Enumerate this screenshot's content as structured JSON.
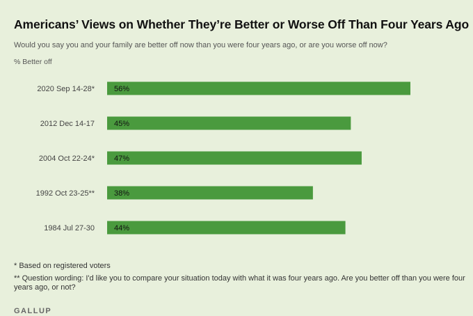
{
  "title": "Americans’ Views on Whether They’re Better or Worse Off Than Four Years Ago",
  "subtitle": "Would you say you and your family are better off now than you were four years ago, or are you worse off now?",
  "unit_label": "% Better off",
  "chart_data": {
    "type": "bar",
    "orientation": "horizontal",
    "categories": [
      "2020 Sep 14-28*",
      "2012 Dec 14-17",
      "2004 Oct 22-24*",
      "1992 Oct 23-25**",
      "1984 Jul 27-30"
    ],
    "values": [
      56,
      45,
      47,
      38,
      44
    ],
    "value_labels": [
      "56%",
      "45%",
      "47%",
      "38%",
      "44%"
    ],
    "xlim": [
      0,
      56
    ],
    "bar_color": "#4a9a3e",
    "series_name": "% Better off"
  },
  "footnotes": [
    "* Based on registered voters",
    "** Question wording: I'd like you to compare your situation today with what it was four years ago. Are you better off than you were four years ago, or not?"
  ],
  "brand": "GALLUP"
}
